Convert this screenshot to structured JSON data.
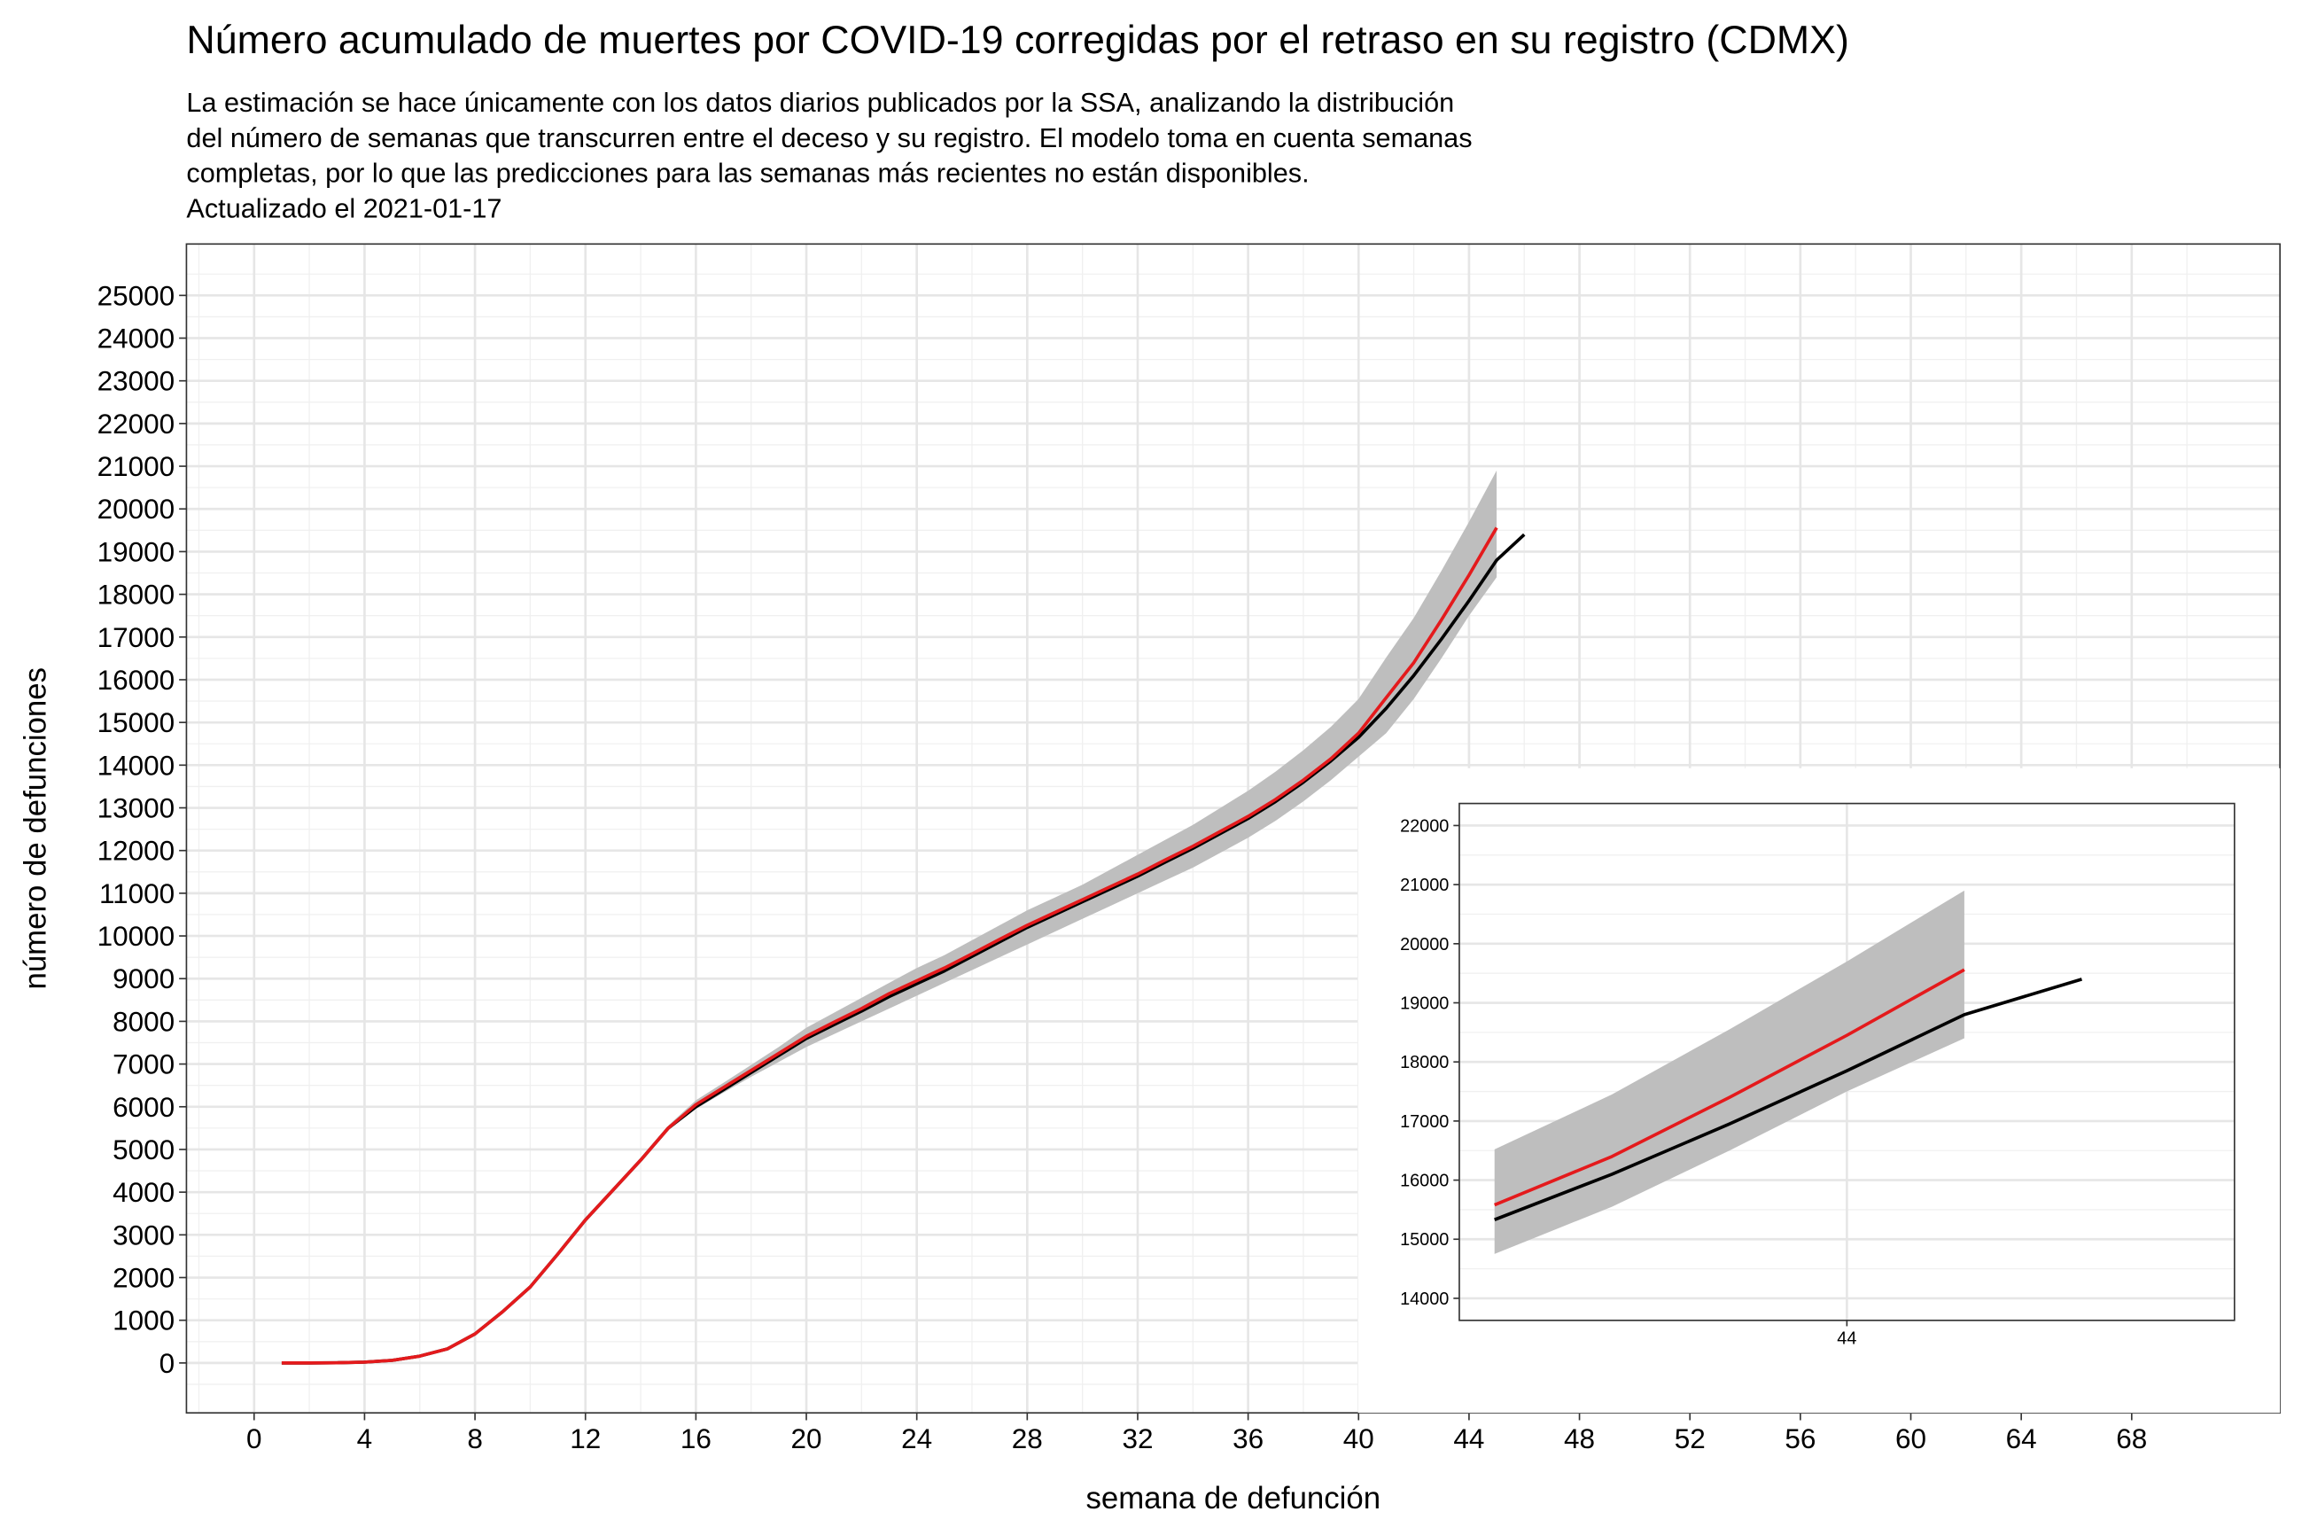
{
  "chart_data": [
    {
      "type": "line",
      "title": "Número acumulado de muertes por COVID-19 corregidas por el retraso en su registro (CDMX)",
      "subtitle": [
        "La estimación se hace únicamente con los datos diarios publicados por la SSA, analizando la distribución",
        "del número de semanas que transcurren entre el deceso y su registro. El modelo toma en cuenta semanas",
        "completas, por lo que las predicciones para las semanas más recientes no están disponibles.",
        "Actualizado el 2021-01-17"
      ],
      "xlabel": "semana de defunción",
      "ylabel": "número de defunciones",
      "xlim": [
        -2.45,
        73.37
      ],
      "ylim": [
        -1169,
        26204
      ],
      "xticks": [
        0,
        4,
        8,
        12,
        16,
        20,
        24,
        28,
        32,
        36,
        40,
        44,
        48,
        52,
        56,
        60,
        64,
        68
      ],
      "yticks": [
        0,
        1000,
        2000,
        3000,
        4000,
        5000,
        6000,
        7000,
        8000,
        9000,
        10000,
        11000,
        12000,
        13000,
        14000,
        15000,
        16000,
        17000,
        18000,
        19000,
        20000,
        21000,
        22000,
        23000,
        24000,
        25000
      ],
      "grid": true,
      "band": {
        "color": "#bebebe",
        "x": [
          15,
          16,
          17,
          18,
          19,
          20,
          21,
          22,
          23,
          24,
          25,
          26,
          27,
          28,
          29,
          30,
          31,
          32,
          33,
          34,
          35,
          36,
          37,
          38,
          39,
          40,
          41,
          42,
          43,
          44,
          45
        ],
        "lower": [
          5450,
          5950,
          6330,
          6700,
          7050,
          7400,
          7700,
          8000,
          8300,
          8600,
          8900,
          9200,
          9500,
          9800,
          10100,
          10400,
          10700,
          11000,
          11300,
          11600,
          11950,
          12300,
          12700,
          13150,
          13650,
          14200,
          14750,
          15550,
          16500,
          17500,
          18400
        ],
        "upper": [
          5560,
          6150,
          6560,
          6980,
          7400,
          7850,
          8200,
          8550,
          8900,
          9250,
          9550,
          9900,
          10250,
          10600,
          10900,
          11200,
          11550,
          11900,
          12250,
          12600,
          13000,
          13400,
          13850,
          14350,
          14900,
          15550,
          16520,
          17450,
          18550,
          19700,
          20900
        ]
      },
      "series": [
        {
          "color": "#000000",
          "x": [
            1,
            2,
            3,
            4,
            5,
            6,
            7,
            8,
            9,
            10,
            11,
            12,
            13,
            14,
            15,
            16,
            17,
            18,
            19,
            20,
            21,
            22,
            23,
            24,
            25,
            26,
            27,
            28,
            29,
            30,
            31,
            32,
            33,
            34,
            35,
            36,
            37,
            38,
            39,
            40,
            41,
            42,
            43,
            44,
            45,
            46
          ],
          "values": [
            0,
            0,
            5,
            20,
            60,
            160,
            330,
            680,
            1200,
            1780,
            2550,
            3350,
            4050,
            4750,
            5500,
            6000,
            6400,
            6800,
            7200,
            7600,
            7920,
            8240,
            8580,
            8880,
            9180,
            9520,
            9860,
            10200,
            10500,
            10800,
            11100,
            11400,
            11730,
            12050,
            12400,
            12750,
            13150,
            13600,
            14100,
            14650,
            15330,
            16100,
            16950,
            17850,
            18800,
            19400
          ]
        },
        {
          "color": "#e41a1c",
          "x": [
            1,
            2,
            3,
            4,
            5,
            6,
            7,
            8,
            9,
            10,
            11,
            12,
            13,
            14,
            15,
            16,
            17,
            18,
            19,
            20,
            21,
            22,
            23,
            24,
            25,
            26,
            27,
            28,
            29,
            30,
            31,
            32,
            33,
            34,
            35,
            36,
            37,
            38,
            39,
            40,
            41,
            42,
            43,
            44,
            45
          ],
          "values": [
            0,
            0,
            5,
            20,
            60,
            160,
            330,
            680,
            1200,
            1780,
            2550,
            3350,
            4050,
            4750,
            5500,
            6050,
            6450,
            6850,
            7250,
            7650,
            7980,
            8300,
            8650,
            8950,
            9250,
            9580,
            9920,
            10250,
            10550,
            10850,
            11150,
            11450,
            11780,
            12100,
            12450,
            12800,
            13200,
            13650,
            14150,
            14750,
            15580,
            16400,
            17400,
            18450,
            19560
          ]
        }
      ]
    },
    {
      "type": "line",
      "xlim": [
        40.7,
        47.3
      ],
      "ylim": [
        13627,
        22373
      ],
      "xticks": [
        44
      ],
      "yticks": [
        14000,
        15000,
        16000,
        17000,
        18000,
        19000,
        20000,
        21000,
        22000
      ],
      "grid": true,
      "band": {
        "color": "#bebebe",
        "x": [
          41,
          42,
          43,
          44,
          45
        ],
        "lower": [
          14750,
          15550,
          16500,
          17500,
          18400
        ],
        "upper": [
          16520,
          17450,
          18550,
          19700,
          20900
        ]
      },
      "series": [
        {
          "color": "#000000",
          "x": [
            41,
            42,
            43,
            44,
            45,
            46
          ],
          "values": [
            15330,
            16100,
            16950,
            17850,
            18800,
            19400
          ]
        },
        {
          "color": "#e41a1c",
          "x": [
            41,
            42,
            43,
            44,
            45
          ],
          "values": [
            15580,
            16400,
            17400,
            18450,
            19560
          ]
        }
      ]
    }
  ]
}
